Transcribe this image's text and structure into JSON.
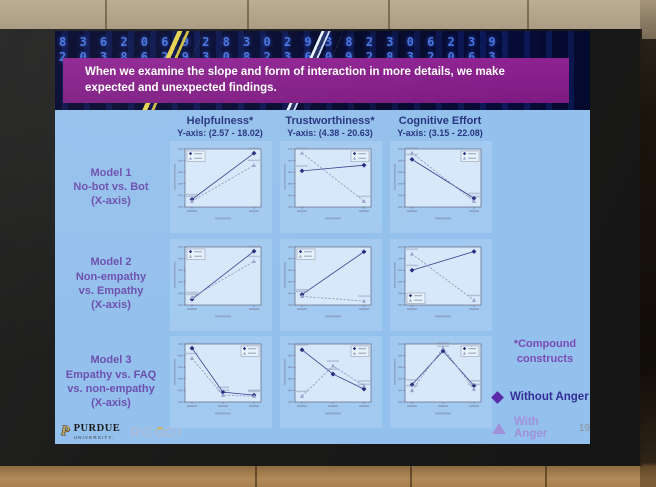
{
  "colors": {
    "slide_bg": "#93c0ec",
    "banner": "#8e2292",
    "header_text": "#26337f",
    "row_label": "#6d4faf",
    "series_without": "#2b2b7e",
    "series_with": "#9aa0c8",
    "legend_without_text": "#332c96",
    "legend_with_text": "#a091d8",
    "matrix_digit": "#4a79e8"
  },
  "slide": {
    "title": "When we examine the slope and form of interaction in more details, we make expected and unexpected findings.",
    "footnote": "*Compound\nconstructs",
    "page_number": "19",
    "matrix_digits": "8 3 6 2 0 6 9 2 8 3 0 2 9 3 8 2 3 0 6 2 3 9\n2 0 3 8 6 2 9 3 0 8 2 3 6 0 9 2 8 3 2 0 6 3"
  },
  "legend": {
    "without_label": "Without Anger",
    "with_label": "With Anger"
  },
  "footer": {
    "purdue": "PURDUE",
    "purdue_sub": "UNIVERSITY.",
    "rcodi_left": "RC",
    "rcodi_right": "DI"
  },
  "columns": [
    {
      "title": "Helpfulness*",
      "yaxis_range_label": "Y-axis: (2.57 - 18.02)"
    },
    {
      "title": "Trustworthiness*",
      "yaxis_range_label": "Y-axis: (4.38 - 20.63)"
    },
    {
      "title": "Cognitive Effort",
      "yaxis_range_label": "Y-axis: (3.15 - 22.08)"
    }
  ],
  "rows": [
    {
      "label": "Model 1\nNo-bot vs. Bot\n(X-axis)"
    },
    {
      "label": "Model 2\nNon-empathy\nvs. Empathy\n(X-axis)"
    },
    {
      "label": "Model 3\nEmpathy vs. FAQ\nvs. non-empathy\n(X-axis)"
    }
  ],
  "chart_data": [
    {
      "type": "line",
      "row": "Model 1",
      "col": "Helpfulness*",
      "x_categories": [
        "No-bot",
        "Bot"
      ],
      "ylim": [
        2.57,
        18.02
      ],
      "legend_pos": "top-left",
      "series": [
        {
          "name": "Without Anger",
          "marker": "diamond",
          "values": [
            4.6,
            16.9
          ]
        },
        {
          "name": "With Anger",
          "marker": "triangle",
          "values": [
            4.1,
            13.7
          ]
        }
      ]
    },
    {
      "type": "line",
      "row": "Model 1",
      "col": "Trustworthiness*",
      "x_categories": [
        "No-bot",
        "Bot"
      ],
      "ylim": [
        4.38,
        20.63
      ],
      "legend_pos": "top-right",
      "series": [
        {
          "name": "Without Anger",
          "marker": "diamond",
          "values": [
            14.5,
            16.1
          ]
        },
        {
          "name": "With Anger",
          "marker": "triangle",
          "values": [
            19.5,
            6.0
          ]
        }
      ]
    },
    {
      "type": "line",
      "row": "Model 1",
      "col": "Cognitive Effort",
      "x_categories": [
        "No-bot",
        "Bot"
      ],
      "ylim": [
        3.15,
        22.08
      ],
      "legend_pos": "top-right",
      "series": [
        {
          "name": "Without Anger",
          "marker": "diamond",
          "values": [
            18.7,
            6.0
          ]
        },
        {
          "name": "With Anger",
          "marker": "triangle",
          "values": [
            20.8,
            5.0
          ]
        }
      ]
    },
    {
      "type": "line",
      "row": "Model 2",
      "col": "Helpfulness*",
      "x_categories": [
        "Non-empathy",
        "Empathy"
      ],
      "ylim": [
        2.57,
        18.02
      ],
      "legend_pos": "top-left",
      "series": [
        {
          "name": "Without Anger",
          "marker": "diamond",
          "values": [
            4.1,
            16.9
          ]
        },
        {
          "name": "With Anger",
          "marker": "triangle",
          "values": [
            4.6,
            14.2
          ]
        }
      ]
    },
    {
      "type": "line",
      "row": "Model 2",
      "col": "Trustworthiness*",
      "x_categories": [
        "Non-empathy",
        "Empathy"
      ],
      "ylim": [
        4.38,
        20.63
      ],
      "legend_pos": "top-left",
      "series": [
        {
          "name": "Without Anger",
          "marker": "diamond",
          "values": [
            7.3,
            19.3
          ]
        },
        {
          "name": "With Anger",
          "marker": "triangle",
          "values": [
            6.8,
            5.5
          ]
        }
      ]
    },
    {
      "type": "line",
      "row": "Model 2",
      "col": "Cognitive Effort",
      "x_categories": [
        "Non-empathy",
        "Empathy"
      ],
      "ylim": [
        3.15,
        22.08
      ],
      "legend_pos": "bottom-left",
      "series": [
        {
          "name": "Without Anger",
          "marker": "diamond",
          "values": [
            14.5,
            20.6
          ]
        },
        {
          "name": "With Anger",
          "marker": "triangle",
          "values": [
            19.8,
            4.7
          ]
        }
      ]
    },
    {
      "type": "line",
      "row": "Model 3",
      "col": "Helpfulness*",
      "x_categories": [
        "Empathy",
        "FAQ",
        "non-empathy"
      ],
      "ylim": [
        2.57,
        18.02
      ],
      "legend_pos": "top-right",
      "series": [
        {
          "name": "Without Anger",
          "marker": "diamond",
          "values": [
            16.9,
            5.2,
            4.4
          ]
        },
        {
          "name": "With Anger",
          "marker": "triangle",
          "values": [
            14.2,
            4.4,
            4.1
          ]
        }
      ]
    },
    {
      "type": "line",
      "row": "Model 3",
      "col": "Trustworthiness*",
      "x_categories": [
        "Empathy",
        "FAQ",
        "non-empathy"
      ],
      "ylim": [
        4.38,
        20.63
      ],
      "legend_pos": "top-right",
      "series": [
        {
          "name": "Without Anger",
          "marker": "diamond",
          "values": [
            19.0,
            12.2,
            8.0
          ]
        },
        {
          "name": "With Anger",
          "marker": "triangle",
          "values": [
            6.0,
            14.5,
            8.9
          ]
        }
      ]
    },
    {
      "type": "line",
      "row": "Model 3",
      "col": "Cognitive Effort",
      "x_categories": [
        "Empathy",
        "FAQ",
        "non-empathy"
      ],
      "ylim": [
        3.15,
        22.08
      ],
      "legend_pos": "top-right",
      "series": [
        {
          "name": "Without Anger",
          "marker": "diamond",
          "values": [
            8.8,
            19.8,
            8.5
          ]
        },
        {
          "name": "With Anger",
          "marker": "triangle",
          "values": [
            6.9,
            20.8,
            7.3
          ]
        }
      ]
    }
  ]
}
